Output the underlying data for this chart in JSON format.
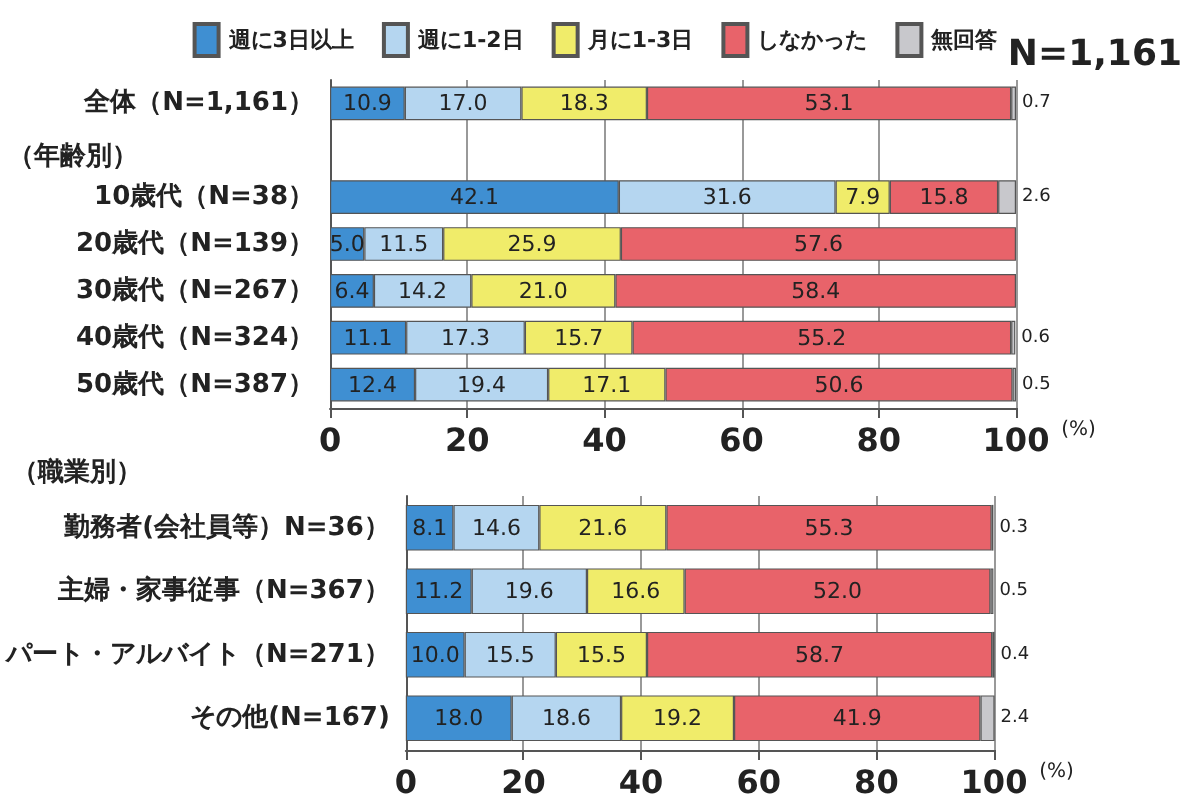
{
  "chart_data": [
    {
      "type": "bar",
      "orientation": "horizontal",
      "stacked": true,
      "grid": "x",
      "legend": "top",
      "xlabel": "(%)",
      "xlim": [
        0,
        100
      ],
      "xticks": [
        0,
        20,
        40,
        60,
        80,
        100
      ],
      "annotations": [
        "N=1,161",
        "（年齢別）"
      ],
      "categories": [
        "全体（N=1,161）",
        null,
        "10歳代（N=38）",
        "20歳代（N=139）",
        "30歳代（N=267）",
        "40歳代（N=324）",
        "50歳代（N=387）"
      ],
      "series": [
        {
          "name": "週に3日以上",
          "color": "#3f8fd2",
          "values": [
            10.9,
            null,
            42.1,
            5.0,
            6.4,
            11.1,
            12.4
          ],
          "value_labels": [
            "10.9",
            null,
            "42.1",
            "5.0",
            "6.4",
            "11.1",
            "12.4"
          ]
        },
        {
          "name": "週に1-2日",
          "color": "#b5d6f0",
          "values": [
            17.0,
            null,
            31.6,
            11.5,
            14.2,
            17.3,
            19.4
          ],
          "value_labels": [
            "17.0",
            null,
            "31.6",
            "11.5",
            "14.2",
            "17.3",
            "19.4"
          ]
        },
        {
          "name": "月に1-3日",
          "color": "#f0ec6a",
          "values": [
            18.3,
            null,
            7.9,
            25.9,
            21.0,
            15.7,
            17.1
          ],
          "value_labels": [
            "18.3",
            null,
            "7.9",
            "25.9",
            "21.0",
            "15.7",
            "17.1"
          ]
        },
        {
          "name": "しなかった",
          "color": "#e8636a",
          "values": [
            53.1,
            null,
            15.8,
            57.6,
            58.4,
            55.2,
            50.6
          ],
          "value_labels": [
            "53.1",
            null,
            "15.8",
            "57.6",
            "58.4",
            "55.2",
            "50.6"
          ]
        },
        {
          "name": "無回答",
          "color": "#c8c8cc",
          "values": [
            0.7,
            null,
            2.6,
            null,
            null,
            0.6,
            0.5
          ],
          "value_labels": [
            "0.7",
            null,
            "2.6",
            null,
            null,
            "0.6",
            "0.5"
          ]
        }
      ]
    },
    {
      "type": "bar",
      "orientation": "horizontal",
      "stacked": true,
      "grid": "x",
      "xlabel": "(%)",
      "xlim": [
        0,
        100
      ],
      "xticks": [
        0,
        20,
        40,
        60,
        80,
        100
      ],
      "annotations": [
        "（職業別）"
      ],
      "categories": [
        "勤務者(会社員等）N=36）",
        "主婦・家事従事（N=367）",
        "パート・アルバイト（N=271）",
        "その他(N=167)"
      ],
      "series": [
        {
          "color": "#3f8fd2",
          "values": [
            8.1,
            11.2,
            10.0,
            18.0
          ],
          "value_labels": [
            "8.1",
            "11.2",
            "10.0",
            "18.0"
          ]
        },
        {
          "color": "#b5d6f0",
          "values": [
            14.6,
            19.6,
            15.5,
            18.6
          ],
          "value_labels": [
            "14.6",
            "19.6",
            "15.5",
            "18.6"
          ]
        },
        {
          "color": "#f0ec6a",
          "values": [
            21.6,
            16.6,
            15.5,
            19.2
          ],
          "value_labels": [
            "21.6",
            "16.6",
            "15.5",
            "19.2"
          ]
        },
        {
          "color": "#e8636a",
          "values": [
            55.3,
            52.0,
            58.7,
            41.9
          ],
          "value_labels": [
            "55.3",
            "52.0",
            "58.7",
            "41.9"
          ]
        },
        {
          "color": "#c8c8cc",
          "values": [
            0.3,
            0.5,
            0.4,
            2.4
          ],
          "value_labels": [
            "0.3",
            "0.5",
            "0.4",
            "2.4"
          ]
        }
      ]
    }
  ]
}
